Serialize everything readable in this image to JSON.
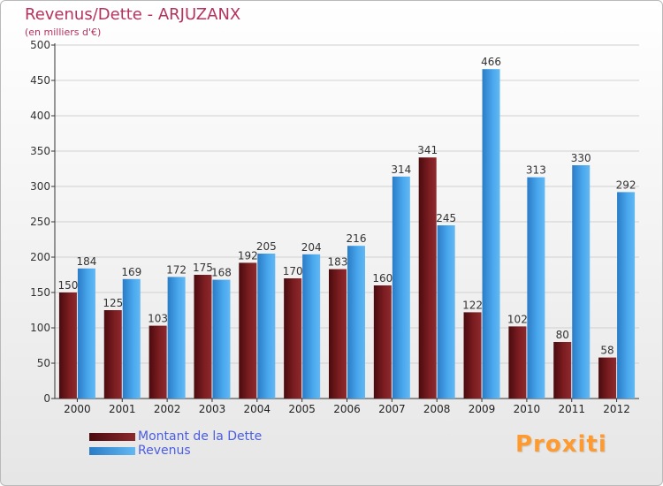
{
  "chart_data": {
    "type": "bar",
    "title": "Revenus/Dette - ARJUZANX",
    "subtitle": "(en milliers d'€)",
    "xlabel": "",
    "ylabel": "",
    "ylim": [
      0,
      500
    ],
    "yticks": [
      0,
      50,
      100,
      150,
      200,
      250,
      300,
      350,
      400,
      450,
      500
    ],
    "grid": true,
    "categories": [
      "2000",
      "2001",
      "2002",
      "2003",
      "2004",
      "2005",
      "2006",
      "2007",
      "2008",
      "2009",
      "2010",
      "2011",
      "2012"
    ],
    "series": [
      {
        "name": "Montant de la Dette",
        "color": "#7a1a1e",
        "values": [
          150,
          125,
          103,
          175,
          192,
          170,
          183,
          160,
          341,
          122,
          102,
          80,
          58
        ]
      },
      {
        "name": "Revenus",
        "color": "#3d9be2",
        "values": [
          184,
          169,
          172,
          168,
          205,
          204,
          216,
          314,
          245,
          466,
          313,
          330,
          292
        ]
      }
    ],
    "legend": [
      {
        "label": "Montant de la Dette",
        "color": "#7a1a1e"
      },
      {
        "label": "Revenus",
        "color": "#3d9be2"
      }
    ]
  },
  "brand": {
    "text": "Proxiti"
  }
}
